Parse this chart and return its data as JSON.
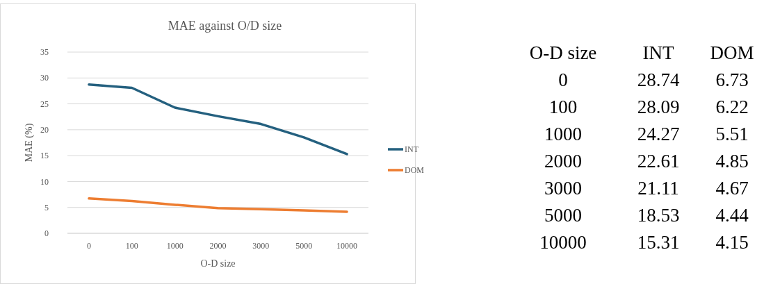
{
  "chart_data": [
    {
      "type": "line",
      "title": "MAE against O/D size",
      "xlabel": "O-D size",
      "ylabel": "MAE (%)",
      "categories": [
        "0",
        "100",
        "1000",
        "2000",
        "3000",
        "5000",
        "10000"
      ],
      "series": [
        {
          "name": "INT",
          "color": "#24607f",
          "values": [
            28.74,
            28.09,
            24.27,
            22.61,
            21.11,
            18.53,
            15.31
          ]
        },
        {
          "name": "DOM",
          "color": "#ed7d31",
          "values": [
            6.73,
            6.22,
            5.51,
            4.85,
            4.67,
            4.44,
            4.15
          ]
        }
      ],
      "ylim": [
        0,
        35
      ],
      "yticks": [
        0,
        5,
        10,
        15,
        20,
        25,
        30,
        35
      ],
      "grid": "y",
      "legend": "right",
      "marker": "none",
      "line_style": "solid"
    },
    {
      "type": "other",
      "xlabel": "O-D size",
      "categories": [
        "0",
        "100",
        "1000",
        "2000",
        "3000",
        "5000",
        "10000"
      ],
      "series": [
        {
          "name": "INT",
          "values": [
            28.74,
            28.09,
            24.27,
            22.61,
            21.11,
            18.53,
            15.31
          ]
        },
        {
          "name": "DOM",
          "values": [
            6.73,
            6.22,
            5.51,
            4.85,
            4.67,
            4.44,
            4.15
          ]
        }
      ],
      "data_labels": true
    }
  ]
}
